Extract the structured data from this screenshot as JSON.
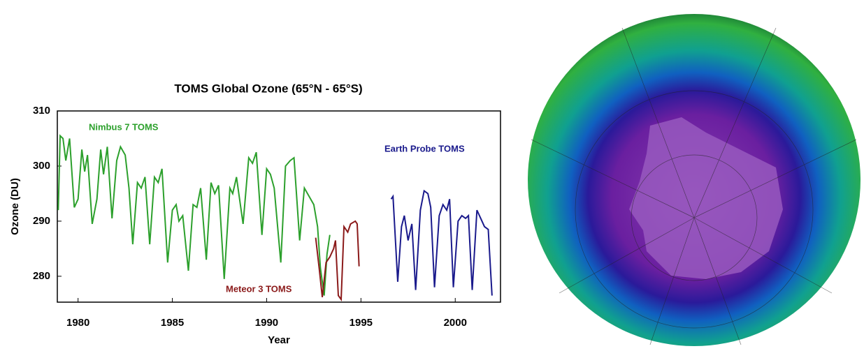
{
  "chart_data": {
    "type": "line",
    "title": "TOMS Global Ozone (65°N - 65°S)",
    "x_label": "Year",
    "y_label": "Ozone (DU)",
    "xlim": [
      1978.9,
      2002.4
    ],
    "ylim": [
      275.3,
      310
    ],
    "xticks": [
      1980,
      1985,
      1990,
      1995,
      2000
    ],
    "yticks": [
      280,
      290,
      300,
      310
    ],
    "grid": false,
    "series": [
      {
        "name": "Nimbus 7 TOMS",
        "color": "#2ca02c",
        "x": [
          1978.95,
          1979.05,
          1979.2,
          1979.35,
          1979.55,
          1979.8,
          1980.0,
          1980.2,
          1980.35,
          1980.5,
          1980.75,
          1981.0,
          1981.2,
          1981.35,
          1981.55,
          1981.8,
          1982.05,
          1982.25,
          1982.5,
          1982.7,
          1982.9,
          1983.15,
          1983.35,
          1983.55,
          1983.8,
          1984.05,
          1984.25,
          1984.45,
          1984.75,
          1985.0,
          1985.2,
          1985.35,
          1985.55,
          1985.85,
          1986.1,
          1986.3,
          1986.5,
          1986.8,
          1987.05,
          1987.25,
          1987.45,
          1987.75,
          1988.05,
          1988.2,
          1988.4,
          1988.75,
          1989.05,
          1989.25,
          1989.45,
          1989.75,
          1990.0,
          1990.2,
          1990.4,
          1990.75,
          1991.0,
          1991.25,
          1991.45,
          1991.75,
          1992.0,
          1992.25,
          1992.5,
          1992.7,
          1992.85,
          1993.05,
          1993.2,
          1993.35
        ],
        "values": [
          292,
          305.5,
          305,
          301,
          305,
          292.5,
          294,
          303,
          299,
          302,
          289.5,
          294,
          303,
          298.5,
          303.5,
          290.5,
          301,
          303.5,
          302,
          296,
          285.8,
          297,
          296,
          298,
          285.8,
          298,
          297,
          299.5,
          282.5,
          292,
          293,
          290,
          291,
          281,
          293,
          292.5,
          296,
          283,
          297,
          295,
          296.5,
          279.5,
          296,
          295,
          298,
          289.5,
          301.5,
          300.5,
          302.5,
          287.5,
          299.5,
          298.5,
          296,
          282.5,
          300,
          301,
          301.5,
          286.5,
          296,
          294.5,
          293,
          289,
          281.5,
          276.5,
          284,
          287.5
        ]
      },
      {
        "name": "Meteor 3 TOMS",
        "color": "#8b1a1a",
        "x": [
          1992.6,
          1992.8,
          1992.95,
          1993.15,
          1993.35,
          1993.55,
          1993.65,
          1993.8,
          1993.95,
          1994.1,
          1994.3,
          1994.45,
          1994.7,
          1994.8,
          1994.9
        ],
        "values": [
          287,
          281,
          276.2,
          282.5,
          283.5,
          285,
          286.5,
          276.5,
          275.8,
          289,
          288,
          289.5,
          290,
          289.5,
          281.8
        ]
      },
      {
        "name": "Earth Probe TOMS",
        "color": "#1a1a8c",
        "x": [
          1996.6,
          1996.7,
          1996.95,
          1997.15,
          1997.3,
          1997.5,
          1997.7,
          1997.9,
          1998.15,
          1998.35,
          1998.55,
          1998.7,
          1998.9,
          1999.15,
          1999.35,
          1999.55,
          1999.7,
          1999.9,
          2000.15,
          2000.35,
          2000.55,
          2000.7,
          2000.9,
          2001.15,
          2001.35,
          2001.55,
          2001.75,
          2001.95
        ],
        "values": [
          294,
          294.5,
          279,
          289,
          291,
          286.5,
          289.5,
          277.5,
          292,
          295.5,
          295,
          292.5,
          278,
          291,
          293,
          292,
          294,
          278,
          290,
          291,
          290.5,
          291,
          277.5,
          292,
          290.5,
          289,
          288.5,
          276.5
        ]
      }
    ]
  }
}
